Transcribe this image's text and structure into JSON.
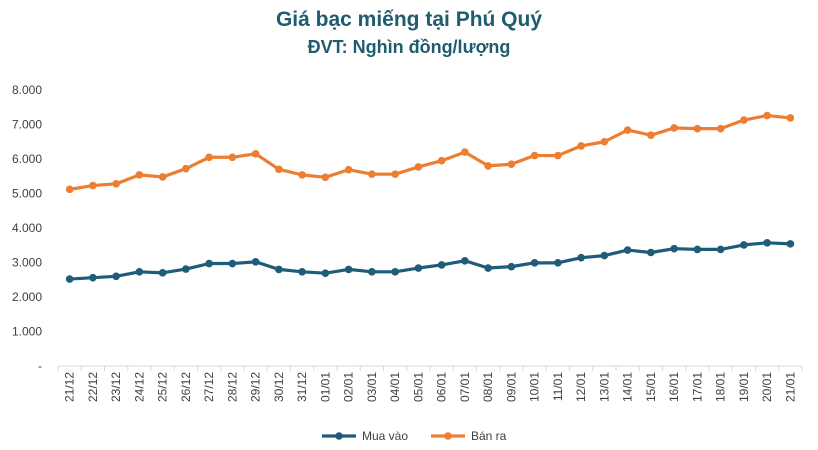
{
  "chart_data": {
    "type": "line",
    "title": "Giá bạc miếng tại Phú Quý",
    "subtitle": "ĐVT: Nghìn đồng/lượng",
    "title_color": "#1F5C6E",
    "xlabel": "",
    "ylabel": "",
    "ylim": [
      0,
      8000
    ],
    "yticks": [
      "-",
      "1.000",
      "2.000",
      "3.000",
      "4.000",
      "5.000",
      "6.000",
      "7.000",
      "8.000"
    ],
    "grid": false,
    "legend": "bottom",
    "categories": [
      "21/12",
      "22/12",
      "23/12",
      "24/12",
      "25/12",
      "26/12",
      "27/12",
      "28/12",
      "29/12",
      "30/12",
      "31/12",
      "01/01",
      "02/01",
      "03/01",
      "04/01",
      "05/01",
      "06/01",
      "07/01",
      "08/01",
      "09/01",
      "10/01",
      "11/01",
      "12/01",
      "13/01",
      "14/01",
      "15/01",
      "16/01",
      "17/01",
      "18/01",
      "19/01",
      "20/01",
      "21/01"
    ],
    "series": [
      {
        "name": "Mua vào",
        "color": "#1F5C7A",
        "values": [
          2520,
          2560,
          2600,
          2730,
          2700,
          2810,
          2970,
          2970,
          3020,
          2800,
          2730,
          2690,
          2800,
          2730,
          2730,
          2840,
          2930,
          3050,
          2840,
          2880,
          2990,
          2990,
          3140,
          3200,
          3360,
          3290,
          3400,
          3380,
          3380,
          3510,
          3570,
          3540
        ]
      },
      {
        "name": "Bán ra",
        "color": "#ED7D31",
        "values": [
          5120,
          5230,
          5280,
          5540,
          5480,
          5720,
          6050,
          6050,
          6150,
          5700,
          5540,
          5470,
          5690,
          5560,
          5560,
          5770,
          5950,
          6200,
          5800,
          5850,
          6100,
          6100,
          6380,
          6500,
          6840,
          6690,
          6900,
          6880,
          6880,
          7130,
          7260,
          7190
        ]
      }
    ]
  }
}
